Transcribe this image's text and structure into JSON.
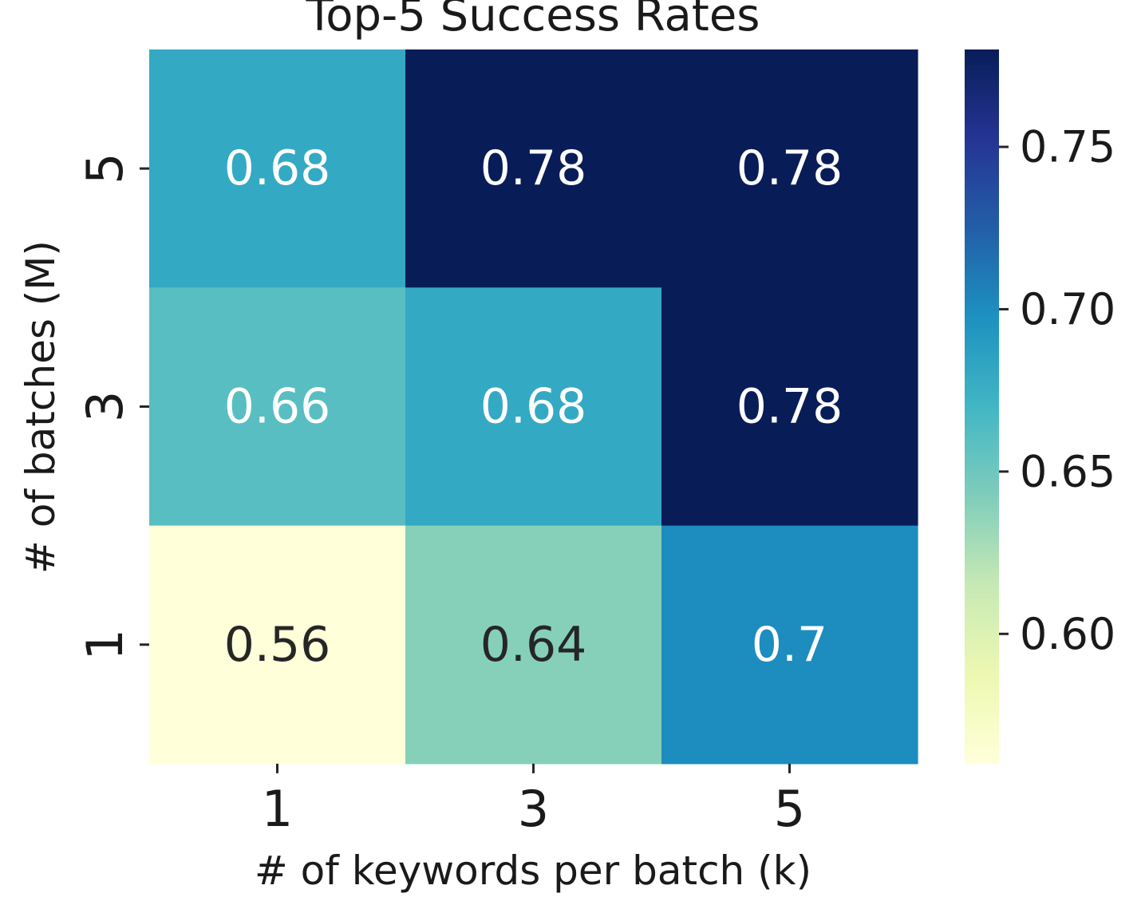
{
  "chart_data": {
    "type": "heatmap",
    "title": "Top-5 Success Rates",
    "xlabel": "# of keywords per batch (k)",
    "ylabel": "# of batches (M)",
    "x_categories": [
      "1",
      "3",
      "5"
    ],
    "y_categories": [
      "5",
      "3",
      "1"
    ],
    "values": [
      [
        0.68,
        0.78,
        0.78
      ],
      [
        0.66,
        0.68,
        0.78
      ],
      [
        0.56,
        0.64,
        0.7
      ]
    ],
    "annotations": [
      [
        "0.68",
        "0.78",
        "0.78"
      ],
      [
        "0.66",
        "0.68",
        "0.78"
      ],
      [
        "0.56",
        "0.64",
        "0.7"
      ]
    ],
    "colormap": "YlGnBu",
    "colorbar": {
      "vmin": 0.56,
      "vmax": 0.78,
      "ticks": [
        0.6,
        0.65,
        0.7,
        0.75
      ],
      "tick_labels": [
        "0.60",
        "0.65",
        "0.70",
        "0.75"
      ]
    }
  }
}
